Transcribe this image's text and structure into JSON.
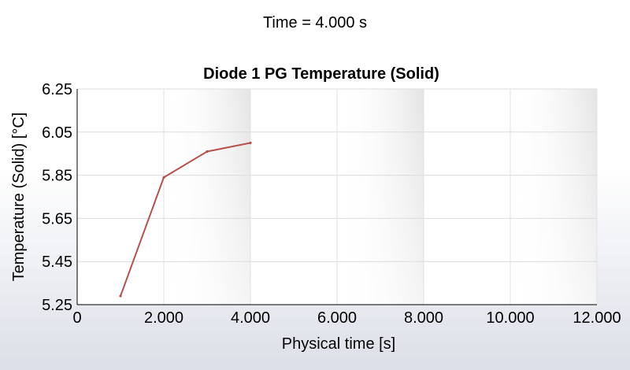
{
  "header": {
    "time_label": "Time = 4.000 s"
  },
  "chart_data": {
    "type": "line",
    "title": "Diode 1 PG Temperature (Solid)",
    "xlabel": "Physical time [s]",
    "ylabel": "Temperature (Solid) [°C]",
    "xlim": [
      0,
      12
    ],
    "ylim": [
      5.25,
      6.25
    ],
    "x_ticks": [
      0,
      2,
      4,
      6,
      8,
      10,
      12
    ],
    "x_tick_labels": [
      "0",
      "2.000",
      "4.000",
      "6.000",
      "8.000",
      "10.000",
      "12.000"
    ],
    "y_ticks": [
      5.25,
      5.45,
      5.65,
      5.85,
      6.05,
      6.25
    ],
    "y_tick_labels": [
      "5.25",
      "5.45",
      "5.65",
      "5.85",
      "6.05",
      "6.25"
    ],
    "grid": true,
    "series": [
      {
        "color": "#b5504b",
        "x": [
          1,
          2,
          3,
          4
        ],
        "y": [
          5.29,
          5.84,
          5.96,
          6.0
        ]
      }
    ]
  }
}
